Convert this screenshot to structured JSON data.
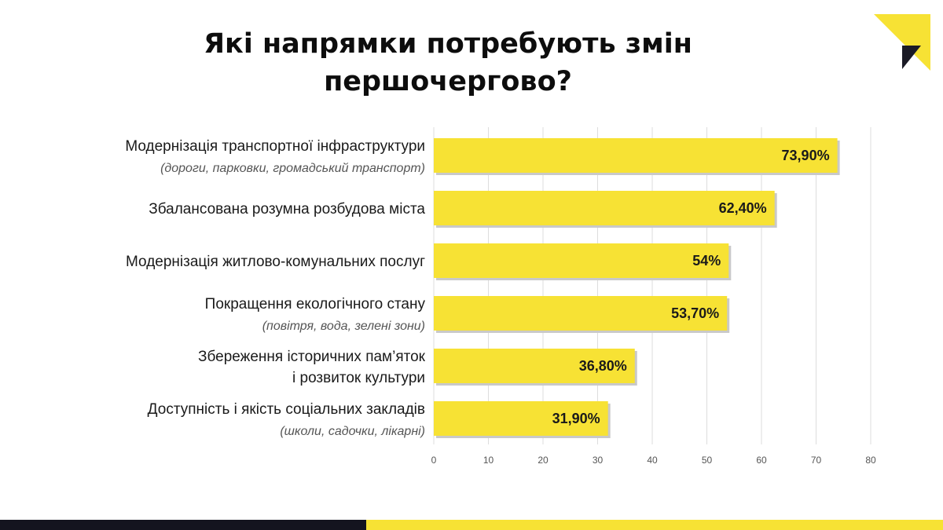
{
  "title": "Які напрямки потребують змін першочергово?",
  "colors": {
    "bar": "#f7e234",
    "bar_shadow": "#c9c9c9",
    "grid": "#dddddd",
    "footer_dark": "#14141f",
    "footer_yellow": "#f7e234",
    "logo_yellow": "#f7e234",
    "logo_dark": "#1b1b26"
  },
  "chart_data": {
    "type": "bar",
    "orientation": "horizontal",
    "categories": [
      {
        "label": "Модернізація транспортної інфраструктури",
        "sublabel": "(дороги, парковки, громадський транспорт)"
      },
      {
        "label": "Збалансована розумна розбудова міста",
        "sublabel": ""
      },
      {
        "label": "Модернізація житлово-комунальних послуг",
        "sublabel": ""
      },
      {
        "label": "Покращення екологічного стану",
        "sublabel": "(повітря, вода, зелені зони)"
      },
      {
        "label": "Збереження історичних пам’яток",
        "sublabel": "і розвиток культури"
      },
      {
        "label": "Доступність і якість соціальних закладів",
        "sublabel": "(школи, садочки, лікарні)"
      }
    ],
    "values": [
      73.9,
      62.4,
      54,
      53.7,
      36.8,
      31.9
    ],
    "value_labels": [
      "73,90%",
      "62,40%",
      "54%",
      "53,70%",
      "36,80%",
      "31,90%"
    ],
    "xlim": [
      0,
      80
    ],
    "ticks": [
      0,
      10,
      20,
      30,
      40,
      50,
      60,
      70,
      80
    ],
    "grid": "vertical",
    "legend": "none",
    "xlabel": "",
    "ylabel": ""
  }
}
